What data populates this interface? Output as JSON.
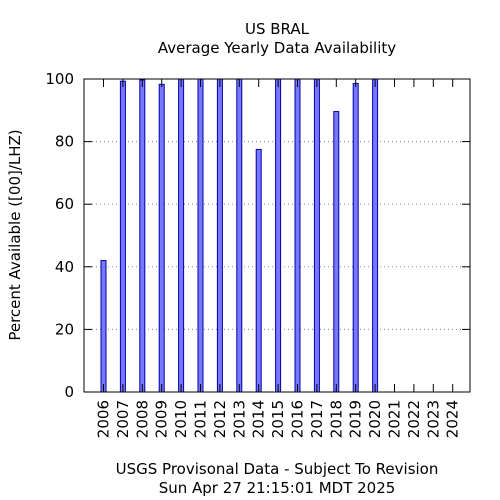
{
  "chart_data": {
    "type": "bar",
    "title": "US BRAL",
    "subtitle": "Average Yearly Data Availability",
    "xlabel": "",
    "ylabel": "Percent Available ([00]/LHZ)",
    "ylim": [
      0,
      100
    ],
    "yticks": [
      0,
      20,
      40,
      60,
      80,
      100
    ],
    "grid": "horizontal-dotted",
    "categories": [
      "2006",
      "2007",
      "2008",
      "2009",
      "2010",
      "2011",
      "2012",
      "2013",
      "2014",
      "2015",
      "2016",
      "2017",
      "2018",
      "2019",
      "2020",
      "2021",
      "2022",
      "2023",
      "2024"
    ],
    "values": [
      42,
      99.3,
      99.7,
      98.3,
      100,
      100,
      100,
      100,
      77.5,
      100,
      100,
      100,
      89.6,
      98.6,
      100,
      0,
      0,
      0,
      0
    ],
    "bar_color": "#7878ff",
    "bar_edge_color": "#0000aa",
    "footer_lines": [
      "USGS Provisonal Data - Subject To Revision",
      "Sun Apr 27 21:15:01 MDT 2025"
    ]
  }
}
